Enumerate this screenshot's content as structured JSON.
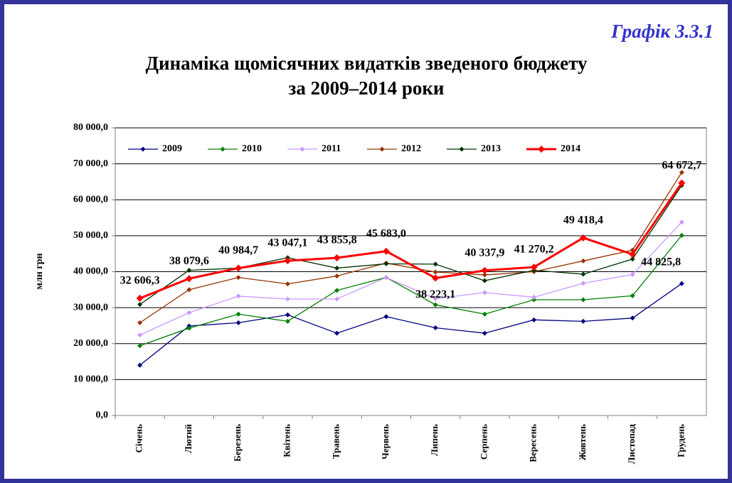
{
  "chart_data": {
    "type": "line",
    "label": "Графік 3.3.1",
    "title": [
      "Динаміка щомісячних видатків зведеного бюджету",
      "за 2009–2014 роки"
    ],
    "y_label": "млн грн",
    "categories": [
      "Січень",
      "Лютий",
      "Березень",
      "Квітень",
      "Травень",
      "Червень",
      "Липень",
      "Серпень",
      "Вересень",
      "Жовтень",
      "Листопад",
      "Грудень"
    ],
    "ylim": [
      0,
      80000
    ],
    "yticks": [
      {
        "value": 0,
        "label": "0,0"
      },
      {
        "value": 10000,
        "label": "10 000,0"
      },
      {
        "value": 20000,
        "label": "20 000,0"
      },
      {
        "value": 30000,
        "label": "30 000,0"
      },
      {
        "value": 40000,
        "label": "40 000,0"
      },
      {
        "value": 50000,
        "label": "50 000,0"
      },
      {
        "value": 60000,
        "label": "60 000,0"
      },
      {
        "value": 70000,
        "label": "70 000,0"
      },
      {
        "value": 80000,
        "label": "80 000,0"
      }
    ],
    "grid": true,
    "legend": "top-left",
    "series": [
      {
        "name": "2009",
        "color": "#000080",
        "values": [
          14000,
          24900,
          25800,
          28000,
          22900,
          27500,
          24400,
          22900,
          26600,
          26200,
          27100,
          36700
        ]
      },
      {
        "name": "2010",
        "color": "#008000",
        "values": [
          19400,
          24300,
          28200,
          26200,
          34800,
          38400,
          30800,
          28200,
          32200,
          32200,
          33300,
          50100
        ]
      },
      {
        "name": "2011",
        "color": "#cc99ff",
        "values": [
          22400,
          28600,
          33200,
          32400,
          32400,
          38400,
          32500,
          34200,
          32900,
          36800,
          39200,
          53800
        ]
      },
      {
        "name": "2012",
        "color": "#993300",
        "values": [
          25800,
          35000,
          38400,
          36600,
          38800,
          42400,
          39900,
          39100,
          40000,
          43000,
          46000,
          67600
        ]
      },
      {
        "name": "2013",
        "color": "#003300",
        "values": [
          30900,
          40400,
          41000,
          43900,
          41000,
          42200,
          42100,
          37500,
          40400,
          39300,
          43500,
          64000
        ]
      },
      {
        "name": "2014",
        "color": "#ff0000",
        "values": [
          32606.3,
          38079.6,
          40984.7,
          43047.1,
          43855.8,
          45683.0,
          38223.1,
          40337.9,
          41270.2,
          49418.4,
          44825.8,
          64672.7
        ],
        "value_labels": [
          "32 606,3",
          "38 079,6",
          "40 984,7",
          "43 047,1",
          "43 855,8",
          "45 683,0",
          "38 223,1",
          "40 337,9",
          "41 270,2",
          "49 418,4",
          "44 825,8",
          "64 672,7"
        ]
      }
    ]
  }
}
